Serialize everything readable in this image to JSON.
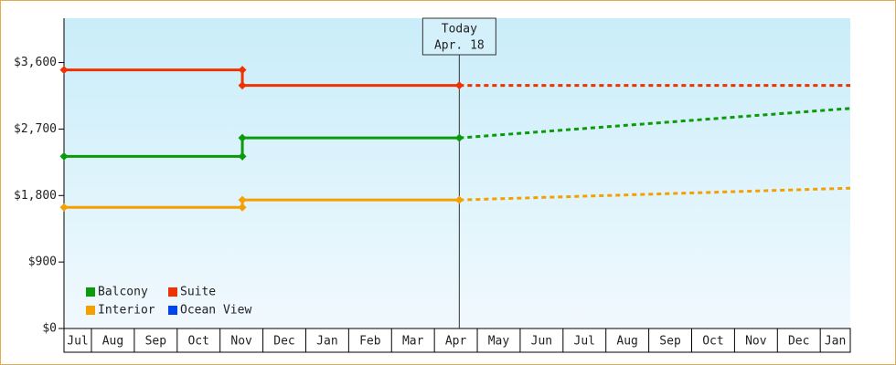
{
  "chart_data": {
    "type": "step-line",
    "xlim": [
      0.36,
      18.7
    ],
    "xticks": [
      {
        "value": 0.68,
        "label": "Jul"
      },
      {
        "value": 1.5,
        "label": "Aug"
      },
      {
        "value": 2.5,
        "label": "Sep"
      },
      {
        "value": 3.5,
        "label": "Oct"
      },
      {
        "value": 4.5,
        "label": "Nov"
      },
      {
        "value": 5.5,
        "label": "Dec"
      },
      {
        "value": 6.5,
        "label": "Jan"
      },
      {
        "value": 7.5,
        "label": "Feb"
      },
      {
        "value": 8.5,
        "label": "Mar"
      },
      {
        "value": 9.5,
        "label": "Apr"
      },
      {
        "value": 10.5,
        "label": "May"
      },
      {
        "value": 11.5,
        "label": "Jun"
      },
      {
        "value": 12.5,
        "label": "Jul"
      },
      {
        "value": 13.5,
        "label": "Aug"
      },
      {
        "value": 14.5,
        "label": "Sep"
      },
      {
        "value": 15.5,
        "label": "Oct"
      },
      {
        "value": 16.5,
        "label": "Nov"
      },
      {
        "value": 17.5,
        "label": "Dec"
      },
      {
        "value": 18.35,
        "label": "Jan"
      }
    ],
    "ylim": [
      0,
      4200
    ],
    "yticks": [
      {
        "value": 0,
        "label": "$0"
      },
      {
        "value": 900,
        "label": "$900"
      },
      {
        "value": 1800,
        "label": "$1,800"
      },
      {
        "value": 2700,
        "label": "$2,700"
      },
      {
        "value": 3600,
        "label": "$3,600"
      }
    ],
    "annotation": {
      "text": [
        "Today",
        "Apr. 18"
      ],
      "x": 9.58
    },
    "legend": "bottom-left",
    "series": [
      {
        "name": "Balcony",
        "color": "#0a9a0a",
        "x": [
          0.36,
          4.52,
          4.52,
          9.58
        ],
        "values": [
          2330,
          2330,
          2580,
          2580
        ],
        "forecast_x": [
          9.58,
          18.7
        ],
        "forecast_values": [
          2580,
          2980
        ]
      },
      {
        "name": "Suite",
        "color": "#ee3300",
        "x": [
          0.36,
          4.52,
          4.52,
          9.58
        ],
        "values": [
          3500,
          3500,
          3290,
          3290
        ],
        "forecast_x": [
          9.58,
          18.7
        ],
        "forecast_values": [
          3290,
          3290
        ]
      },
      {
        "name": "Interior",
        "color": "#f5a000",
        "x": [
          0.36,
          4.52,
          4.52,
          9.58
        ],
        "values": [
          1640,
          1640,
          1740,
          1740
        ],
        "forecast_x": [
          9.58,
          18.7
        ],
        "forecast_values": [
          1740,
          1900
        ]
      },
      {
        "name": "Ocean View",
        "color": "#0044ee",
        "x": [],
        "values": [],
        "forecast_x": [],
        "forecast_values": []
      }
    ]
  }
}
